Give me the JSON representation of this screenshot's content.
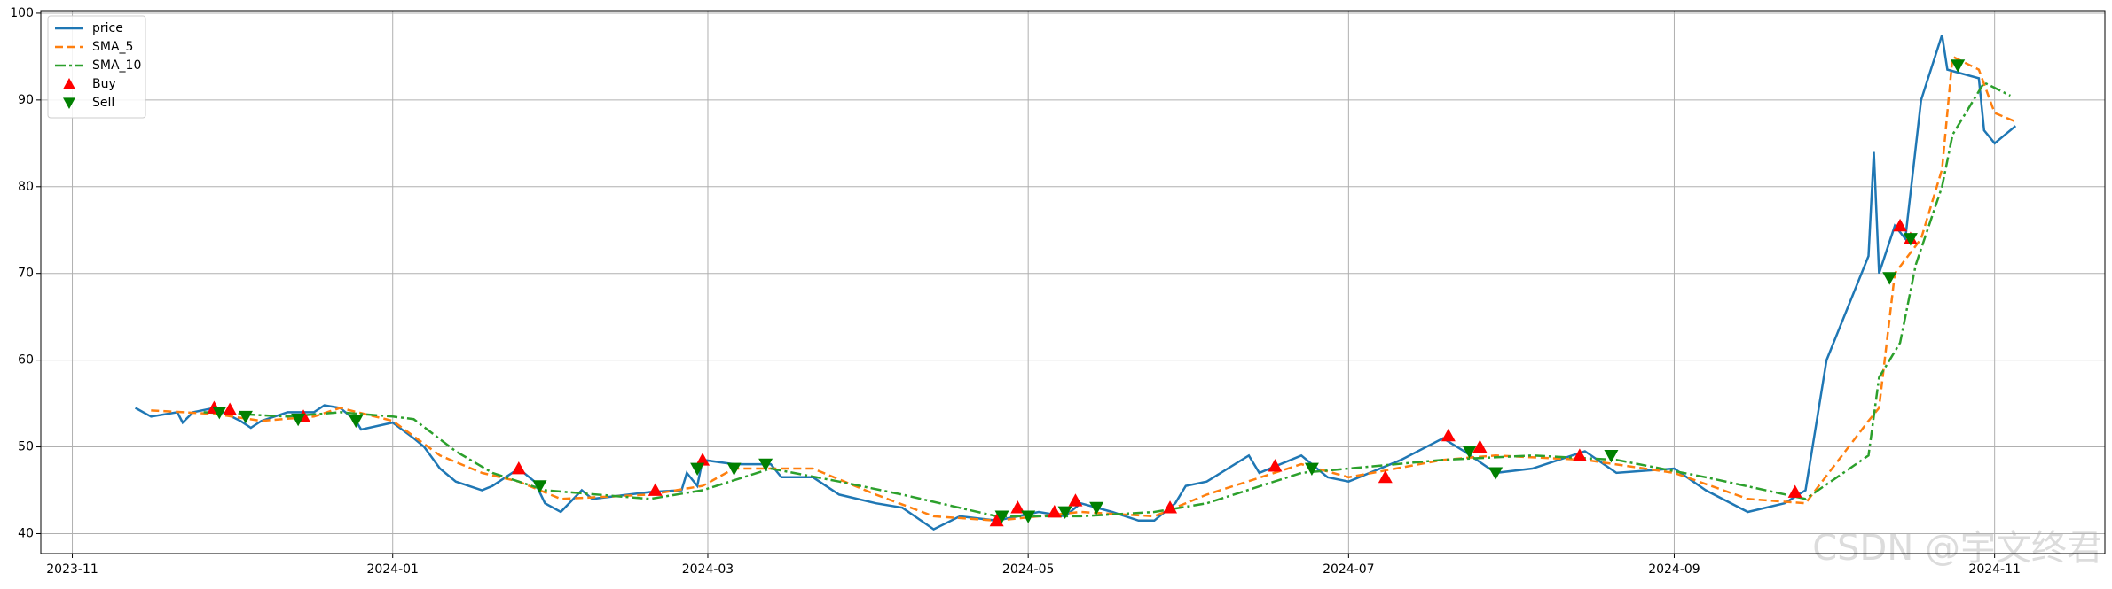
{
  "chart_data": {
    "type": "line",
    "xlim": [
      19656,
      20049
    ],
    "ylim": [
      37.7,
      100.3
    ],
    "xticks": [
      {
        "value": 19662,
        "label": "2023-11"
      },
      {
        "value": 19723,
        "label": "2024-01"
      },
      {
        "value": 19783,
        "label": "2024-03"
      },
      {
        "value": 19844,
        "label": "2024-05"
      },
      {
        "value": 19905,
        "label": "2024-07"
      },
      {
        "value": 19967,
        "label": "2024-09"
      },
      {
        "value": 20028,
        "label": "2024-11"
      }
    ],
    "yticks": [
      40,
      50,
      60,
      70,
      80,
      90,
      100
    ],
    "grid": true,
    "legend": "upper left",
    "watermark": "CSDN @宇文终君",
    "series": [
      {
        "name": "price",
        "color": "#1f77b4",
        "linestyle": "-",
        "x": [
          19674,
          19677,
          19682,
          19683,
          19685,
          19689,
          19694,
          19696,
          19698,
          19703,
          19708,
          19710,
          19713,
          19716,
          19717,
          19723,
          19727,
          19729,
          19732,
          19735,
          19740,
          19742,
          19747,
          19750,
          19752,
          19755,
          19759,
          19761,
          19772,
          19778,
          19779,
          19781,
          19782,
          19788,
          19795,
          19797,
          19803,
          19808,
          19815,
          19820,
          19826,
          19831,
          19838,
          19846,
          19851,
          19854,
          19860,
          19865,
          19868,
          19872,
          19874,
          19878,
          19886,
          19888,
          19896,
          19901,
          19905,
          19915,
          19923,
          19927,
          19933,
          19940,
          19950,
          19956,
          19967,
          19973,
          19981,
          19988,
          19992,
          19996,
          20004,
          20005,
          20006,
          20009,
          20011,
          20014,
          20018,
          20019,
          20025,
          20026,
          20028,
          20032
        ],
        "values": [
          54.5,
          53.5,
          54,
          52.8,
          54,
          54.5,
          53,
          52.2,
          53,
          54,
          54,
          54.8,
          54.5,
          53,
          52,
          52.8,
          51,
          50,
          47.5,
          46,
          45,
          45.5,
          47.5,
          46,
          43.5,
          42.5,
          45,
          44,
          44.8,
          45,
          47,
          45.5,
          48.5,
          48,
          48,
          46.5,
          46.5,
          44.5,
          43.5,
          43,
          40.5,
          42,
          41.5,
          42.5,
          42,
          43.5,
          42.5,
          41.5,
          41.5,
          43.5,
          45.5,
          46,
          49,
          47,
          49,
          46.5,
          46,
          48.5,
          51,
          49.5,
          47,
          47.5,
          49.5,
          47,
          47.5,
          45,
          42.5,
          43.5,
          45,
          60,
          72,
          84,
          70,
          75.5,
          74,
          90,
          97.5,
          93.5,
          92.5,
          86.5,
          85,
          87
        ]
      },
      {
        "name": "SMA_5",
        "color": "#ff7f0e",
        "linestyle": "--",
        "x": [
          19677,
          19689,
          19698,
          19708,
          19713,
          19723,
          19732,
          19740,
          19747,
          19755,
          19772,
          19782,
          19788,
          19803,
          19815,
          19826,
          19838,
          19854,
          19868,
          19878,
          19896,
          19905,
          19923,
          19933,
          19950,
          19967,
          19981,
          19992,
          20004,
          20006,
          20009,
          20014,
          20018,
          20020,
          20025,
          20028,
          20032
        ],
        "values": [
          54.2,
          53.8,
          53,
          53.5,
          54.5,
          53,
          49,
          47,
          46,
          44,
          44.5,
          45.5,
          47.5,
          47.5,
          44.5,
          42,
          41.5,
          42.5,
          42,
          44.5,
          48,
          46.5,
          48.5,
          49,
          48.5,
          47,
          44,
          43.5,
          53,
          54.5,
          70,
          74,
          82,
          95,
          93.5,
          88.5,
          87.5
        ]
      },
      {
        "name": "SMA_10",
        "color": "#2ca02c",
        "linestyle": "-.",
        "x": [
          19687,
          19703,
          19713,
          19723,
          19727,
          19735,
          19742,
          19752,
          19772,
          19782,
          19795,
          19808,
          19820,
          19838,
          19854,
          19868,
          19878,
          19896,
          19905,
          19923,
          19940,
          19956,
          19973,
          19992,
          20004,
          20006,
          20010,
          20013,
          20018,
          20020,
          20026,
          20031
        ],
        "values": [
          54,
          53.5,
          54,
          53.5,
          53.2,
          49.5,
          47,
          45,
          44,
          45,
          47.5,
          46,
          44.5,
          42,
          42,
          42.5,
          43.5,
          47,
          47.5,
          48.5,
          49,
          48.5,
          46.5,
          44,
          49,
          58,
          62,
          71,
          80,
          86,
          92,
          90.5
        ]
      },
      {
        "name": "Buy",
        "color": "#ff0000",
        "marker": "^",
        "x": [
          19689,
          19692,
          19706,
          19747,
          19773,
          19782,
          19838,
          19842,
          19849,
          19853,
          19871,
          19891,
          19912,
          19924,
          19930,
          19949,
          19990,
          20010,
          20012
        ],
        "values": [
          54.5,
          54.3,
          53.5,
          47.5,
          45,
          48.5,
          41.5,
          43,
          42.5,
          43.8,
          43,
          47.8,
          46.5,
          51.3,
          50,
          49,
          44.8,
          75.5,
          74
        ]
      },
      {
        "name": "Sell",
        "color": "#008000",
        "marker": "v",
        "x": [
          19690,
          19695,
          19705,
          19716,
          19751,
          19781,
          19788,
          19794,
          19839,
          19844,
          19851,
          19857,
          19898,
          19928,
          19933,
          19955,
          20008,
          20012,
          20021
        ],
        "values": [
          54,
          53.5,
          53.2,
          53,
          45.5,
          47.5,
          47.5,
          48,
          42,
          42,
          42.5,
          43,
          47.5,
          49.5,
          47,
          49,
          69.5,
          74,
          94
        ]
      }
    ]
  }
}
